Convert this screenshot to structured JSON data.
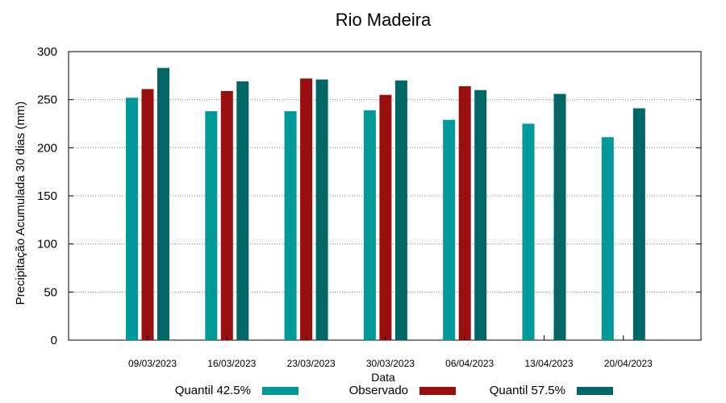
{
  "chart_data": {
    "type": "bar",
    "title": "Rio Madeira",
    "xlabel": "Data",
    "ylabel": "Precipitação Acumulada 30 dias (mm)",
    "ylim": [
      0,
      300
    ],
    "yticks": [
      0,
      50,
      100,
      150,
      200,
      250,
      300
    ],
    "grid": true,
    "legend_position": "bottom",
    "categories": [
      "09/03/2023",
      "16/03/2023",
      "23/03/2023",
      "30/03/2023",
      "06/04/2023",
      "13/04/2023",
      "20/04/2023"
    ],
    "series": [
      {
        "name": "Quantil 42.5%",
        "color": "#009999",
        "values": [
          252,
          238,
          238,
          239,
          229,
          225,
          211
        ]
      },
      {
        "name": "Observado",
        "color": "#990f0f",
        "values": [
          261,
          259,
          272,
          255,
          264,
          null,
          null
        ]
      },
      {
        "name": "Quantil 57.5%",
        "color": "#006666",
        "values": [
          283,
          269,
          271,
          270,
          260,
          256,
          241
        ]
      }
    ]
  }
}
